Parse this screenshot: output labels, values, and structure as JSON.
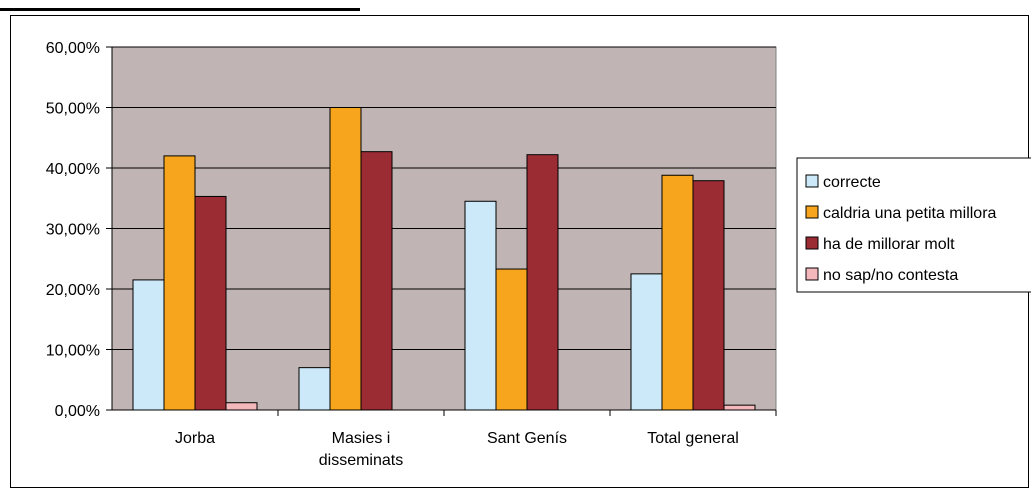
{
  "chart_data": {
    "type": "bar",
    "categories": [
      [
        "Jorba"
      ],
      [
        "Masies i",
        "disseminats"
      ],
      [
        "Sant Genís"
      ],
      [
        "Total general"
      ]
    ],
    "series": [
      {
        "name": "correcte",
        "values": [
          21.5,
          7.0,
          34.5,
          22.5
        ]
      },
      {
        "name": "caldria una petita millora",
        "values": [
          42.0,
          50.0,
          23.3,
          38.8
        ]
      },
      {
        "name": "ha de millorar molt",
        "values": [
          35.3,
          42.7,
          42.2,
          37.9
        ]
      },
      {
        "name": "no sap/no contesta",
        "values": [
          1.2,
          0.0,
          0.0,
          0.8
        ]
      }
    ],
    "ylim": [
      0,
      60
    ],
    "y_ticks": [
      "0,00%",
      "10,00%",
      "20,00%",
      "30,00%",
      "40,00%",
      "50,00%",
      "60,00%"
    ],
    "y_unit": "%",
    "grid": true,
    "legend_position": "right",
    "title": "",
    "xlabel": "",
    "ylabel": ""
  },
  "colors": {
    "plot_background": "#c0b4b4",
    "series": [
      "#cce9f9",
      "#f6a51c",
      "#9b2c34",
      "#f4b8bc"
    ]
  }
}
